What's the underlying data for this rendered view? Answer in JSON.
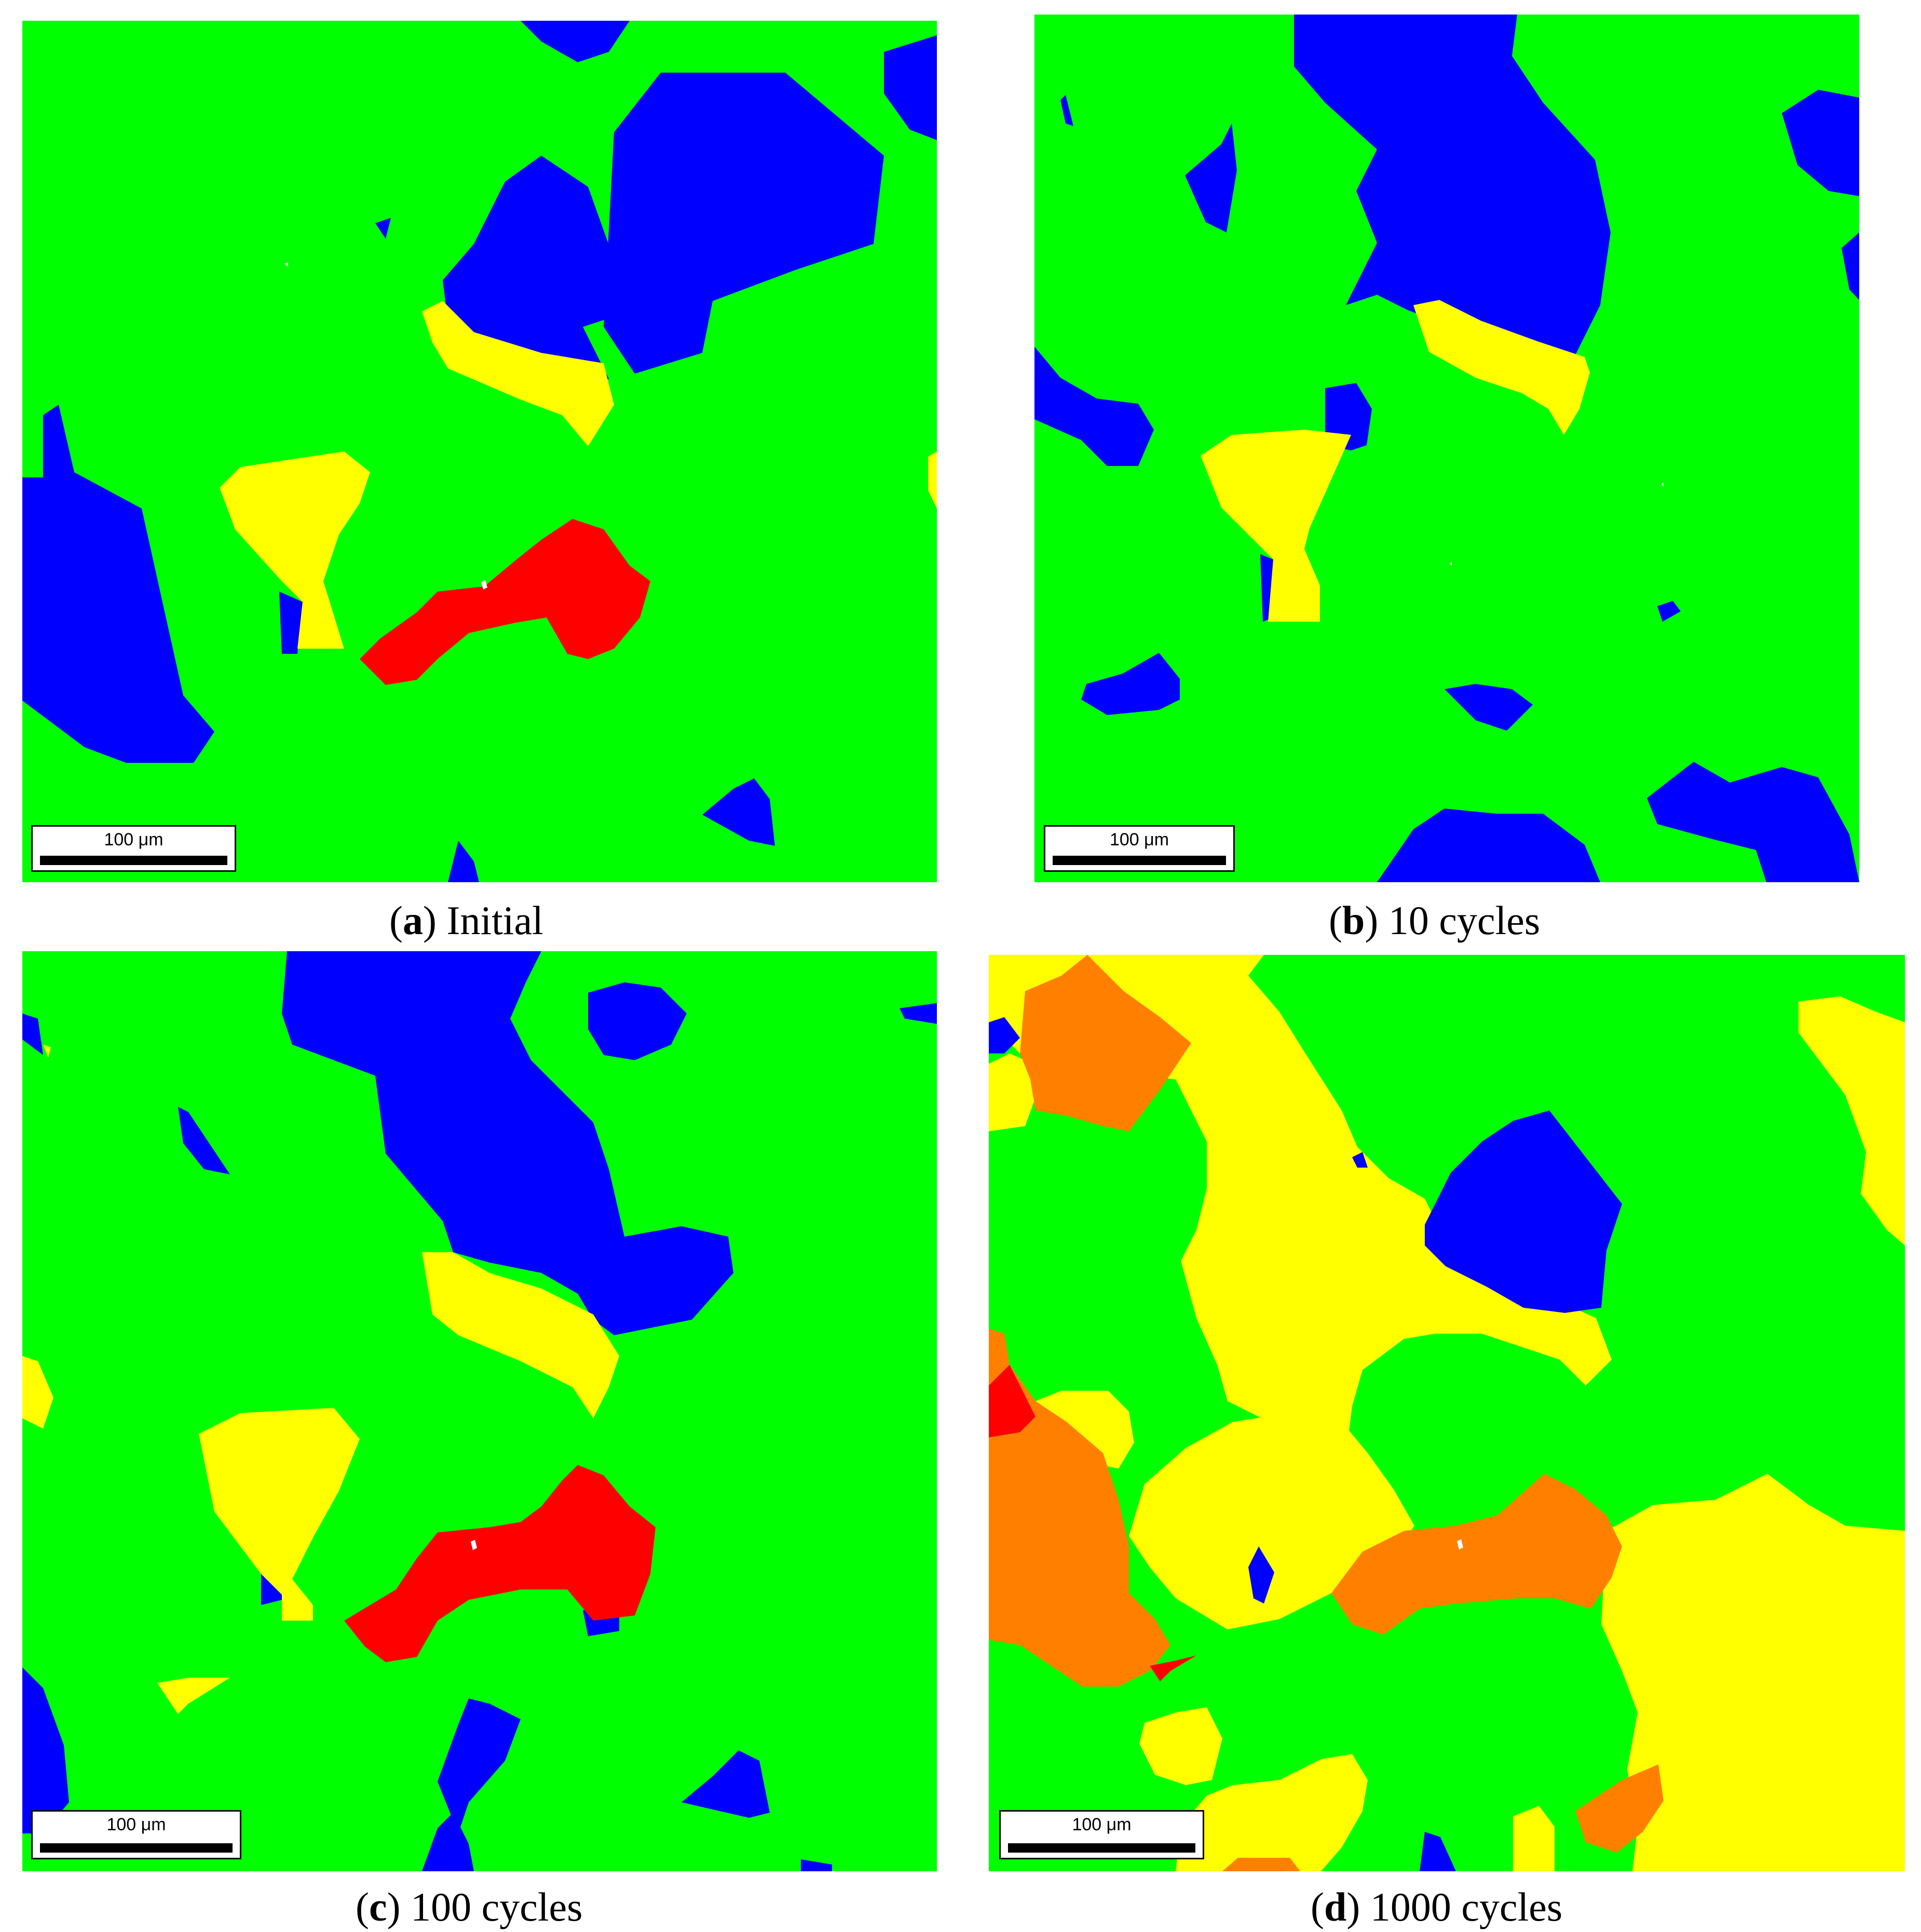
{
  "colors": {
    "green": "#00ff00",
    "blue": "#0000ff",
    "yellow": "#ffff00",
    "red": "#ff0000",
    "orange": "#ff8000",
    "white": "#ffffff"
  },
  "panels": [
    {
      "letter": "a",
      "caption": "Initial",
      "scale_label": "100 μm"
    },
    {
      "letter": "b",
      "caption": "10 cycles",
      "scale_label": "100 μm"
    },
    {
      "letter": "c",
      "caption": "100 cycles",
      "scale_label": "100 μm"
    },
    {
      "letter": "d",
      "caption": "1000 cycles",
      "scale_label": "100 μm"
    }
  ]
}
